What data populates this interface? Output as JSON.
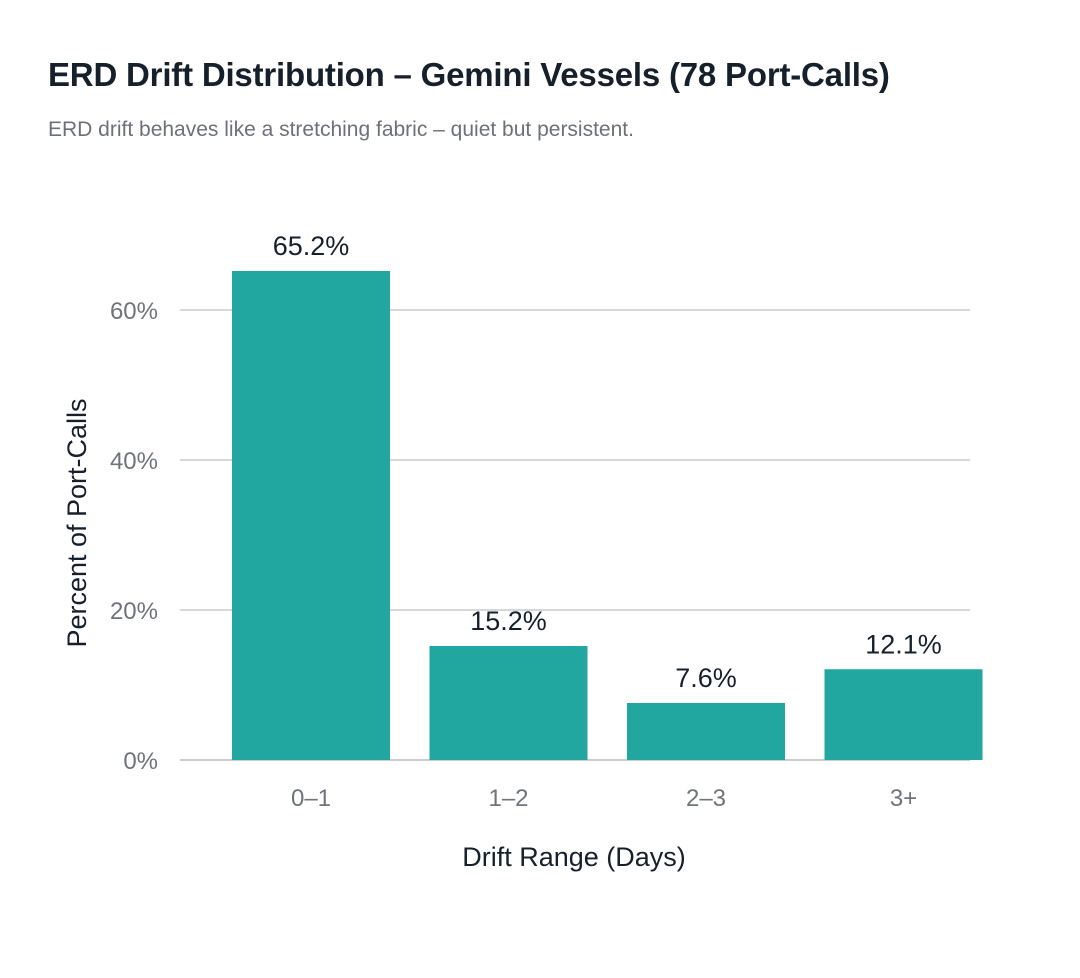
{
  "title": "ERD Drift Distribution – Gemini Vessels (78 Port-Calls)",
  "subtitle": "ERD drift behaves like a stretching fabric – quiet but persistent.",
  "colors": {
    "bar": "#21a6a0",
    "grid": "#d5d7da",
    "axis": "#c9ccd0",
    "text_dark": "#16202b",
    "text_muted": "#6f747a"
  },
  "chart_data": {
    "type": "bar",
    "title": "ERD Drift Distribution – Gemini Vessels (78 Port-Calls)",
    "subtitle": "ERD drift behaves like a stretching fabric – quiet but persistent.",
    "xlabel": "Drift Range (Days)",
    "ylabel": "Percent of Port-Calls",
    "categories": [
      "0–1",
      "1–2",
      "2–3",
      "3+"
    ],
    "values": [
      65.2,
      15.2,
      7.6,
      12.1
    ],
    "data_labels": [
      "65.2%",
      "15.2%",
      "7.6%",
      "12.1%"
    ],
    "yticks": [
      0,
      20,
      40,
      60
    ],
    "ytick_labels": [
      "0%",
      "20%",
      "40%",
      "60%"
    ],
    "ylim": [
      0,
      65.2
    ],
    "grid": true,
    "legend": "none"
  }
}
